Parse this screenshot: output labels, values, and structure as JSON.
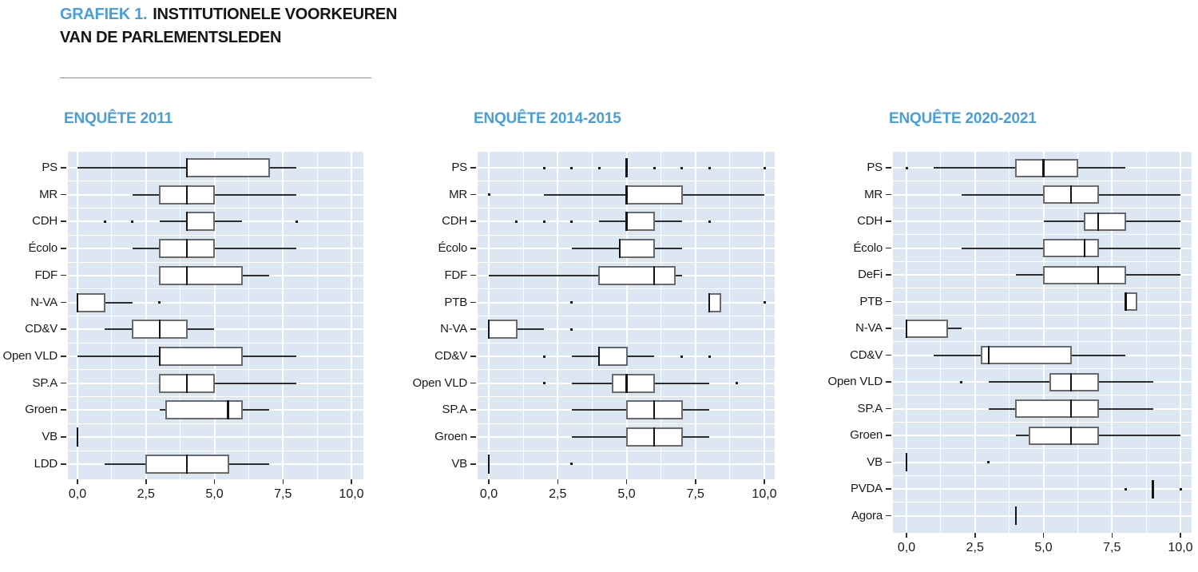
{
  "header": {
    "kicker": "GRAFIEK 1.",
    "title_line1": "INSTITUTIONELE VOORKEUREN",
    "title_line2": "VAN DE PARLEMENTSLEDEN"
  },
  "colors": {
    "accent_blue": "#4A9FD8",
    "panel_bg": "#DCE7F3",
    "grid_line": "#FFFFFF",
    "box_border": "#6A6A6A",
    "whisker": "#2E2E2E",
    "median": "#141414",
    "text": "#1A1A1A",
    "rule": "#8C8C8C"
  },
  "axis": {
    "x_tick_labels": [
      "0,0",
      "2,5",
      "5,0",
      "7,5",
      "10,0"
    ],
    "x_tick_values": [
      0,
      2.5,
      5,
      7.5,
      10
    ],
    "x_minor_step": 1.25,
    "xlim": [
      0,
      10
    ],
    "grid": "white-on-blue"
  },
  "chart_data": [
    {
      "type": "boxplot",
      "orientation": "horizontal",
      "title": "ENQUÊTE 2011",
      "xlim": [
        0,
        10
      ],
      "rows": [
        {
          "label": "PS",
          "min": 0,
          "q1": 4,
          "median": 4,
          "q3": 7,
          "max": 8,
          "outliers": []
        },
        {
          "label": "MR",
          "min": 2,
          "q1": 3,
          "median": 4,
          "q3": 5,
          "max": 8,
          "outliers": []
        },
        {
          "label": "CDH",
          "min": 3,
          "q1": 4,
          "median": 4,
          "q3": 5,
          "max": 6,
          "outliers": [
            1,
            2,
            8
          ]
        },
        {
          "label": "Écolo",
          "min": 2,
          "q1": 3,
          "median": 4,
          "q3": 5,
          "max": 8,
          "outliers": []
        },
        {
          "label": "FDF",
          "min": 3,
          "q1": 3,
          "median": 4,
          "q3": 6,
          "max": 7,
          "outliers": []
        },
        {
          "label": "N-VA",
          "min": 0,
          "q1": 0,
          "median": 0,
          "q3": 1,
          "max": 2,
          "outliers": [
            3
          ]
        },
        {
          "label": "CD&V",
          "min": 1,
          "q1": 2,
          "median": 3,
          "q3": 4,
          "max": 5,
          "outliers": []
        },
        {
          "label": "Open VLD",
          "min": 0,
          "q1": 3,
          "median": 3,
          "q3": 6,
          "max": 8,
          "outliers": []
        },
        {
          "label": "SP.A",
          "min": 3,
          "q1": 3,
          "median": 4,
          "q3": 5,
          "max": 8,
          "outliers": []
        },
        {
          "label": "Groen",
          "min": 3,
          "q1": 3.25,
          "median": 5.5,
          "q3": 6,
          "max": 7,
          "outliers": []
        },
        {
          "label": "VB",
          "min": 0,
          "q1": 0,
          "median": 0,
          "q3": 0,
          "max": 0,
          "outliers": []
        },
        {
          "label": "LDD",
          "min": 1,
          "q1": 2.5,
          "median": 4,
          "q3": 5.5,
          "max": 7,
          "outliers": []
        }
      ]
    },
    {
      "type": "boxplot",
      "orientation": "horizontal",
      "title": "ENQUÊTE 2014-2015",
      "xlim": [
        0,
        10
      ],
      "rows": [
        {
          "label": "PS",
          "min": 5,
          "q1": 5,
          "median": 5,
          "q3": 5,
          "max": 5,
          "outliers": [
            2,
            3,
            4,
            6,
            7,
            8,
            10
          ]
        },
        {
          "label": "MR",
          "min": 2,
          "q1": 5,
          "median": 5,
          "q3": 7,
          "max": 10,
          "outliers": [
            0
          ]
        },
        {
          "label": "CDH",
          "min": 4,
          "q1": 5,
          "median": 5,
          "q3": 6,
          "max": 7,
          "outliers": [
            1,
            2,
            3,
            8
          ]
        },
        {
          "label": "Écolo",
          "min": 3,
          "q1": 4.75,
          "median": 4.75,
          "q3": 6,
          "max": 7,
          "outliers": []
        },
        {
          "label": "FDF",
          "min": 0,
          "q1": 4,
          "median": 6,
          "q3": 6.75,
          "max": 7,
          "outliers": []
        },
        {
          "label": "PTB",
          "min": 8,
          "q1": 8,
          "median": 8,
          "q3": 8.4,
          "max": 8.4,
          "outliers": [
            3,
            10
          ]
        },
        {
          "label": "N-VA",
          "min": 0,
          "q1": 0,
          "median": 0,
          "q3": 1,
          "max": 2,
          "outliers": [
            3
          ]
        },
        {
          "label": "CD&V",
          "min": 3,
          "q1": 4,
          "median": 4,
          "q3": 5,
          "max": 6,
          "outliers": [
            2,
            7,
            8
          ]
        },
        {
          "label": "Open VLD",
          "min": 3,
          "q1": 4.5,
          "median": 5,
          "q3": 6,
          "max": 8,
          "outliers": [
            2,
            9
          ]
        },
        {
          "label": "SP.A",
          "min": 3,
          "q1": 5,
          "median": 6,
          "q3": 7,
          "max": 8,
          "outliers": []
        },
        {
          "label": "Groen",
          "min": 3,
          "q1": 5,
          "median": 6,
          "q3": 7,
          "max": 8,
          "outliers": []
        },
        {
          "label": "VB",
          "min": 0,
          "q1": 0,
          "median": 0,
          "q3": 0,
          "max": 0,
          "outliers": [
            3
          ]
        }
      ]
    },
    {
      "type": "boxplot",
      "orientation": "horizontal",
      "title": "ENQUÊTE 2020-2021",
      "xlim": [
        0,
        10
      ],
      "rows": [
        {
          "label": "PS",
          "min": 1,
          "q1": 4,
          "median": 5,
          "q3": 6.25,
          "max": 8,
          "outliers": [
            0
          ]
        },
        {
          "label": "MR",
          "min": 2,
          "q1": 5,
          "median": 6,
          "q3": 7,
          "max": 10,
          "outliers": []
        },
        {
          "label": "CDH",
          "min": 5,
          "q1": 6.5,
          "median": 7,
          "q3": 8,
          "max": 10,
          "outliers": []
        },
        {
          "label": "Écolo",
          "min": 2,
          "q1": 5,
          "median": 6.5,
          "q3": 7,
          "max": 10,
          "outliers": []
        },
        {
          "label": "DeFi",
          "min": 4,
          "q1": 5,
          "median": 7,
          "q3": 8,
          "max": 10,
          "outliers": []
        },
        {
          "label": "PTB",
          "min": 8,
          "q1": 8,
          "median": 8,
          "q3": 8.4,
          "max": 8.4,
          "outliers": []
        },
        {
          "label": "N-VA",
          "min": 0,
          "q1": 0,
          "median": 0,
          "q3": 1.5,
          "max": 2,
          "outliers": []
        },
        {
          "label": "CD&V",
          "min": 1,
          "q1": 2.75,
          "median": 3,
          "q3": 6,
          "max": 8,
          "outliers": []
        },
        {
          "label": "Open VLD",
          "min": 3,
          "q1": 5.25,
          "median": 6,
          "q3": 7,
          "max": 9,
          "outliers": [
            2
          ]
        },
        {
          "label": "SP.A",
          "min": 3,
          "q1": 4,
          "median": 6,
          "q3": 7,
          "max": 9,
          "outliers": []
        },
        {
          "label": "Groen",
          "min": 4,
          "q1": 4.5,
          "median": 6,
          "q3": 7,
          "max": 10,
          "outliers": []
        },
        {
          "label": "VB",
          "min": 0,
          "q1": 0,
          "median": 0,
          "q3": 0,
          "max": 0,
          "outliers": [
            3
          ]
        },
        {
          "label": "PVDA",
          "min": 9,
          "q1": 9,
          "median": 9,
          "q3": 9,
          "max": 9,
          "outliers": [
            8,
            10
          ]
        },
        {
          "label": "Agora",
          "min": 4,
          "q1": 4,
          "median": 4,
          "q3": 4,
          "max": 4,
          "outliers": []
        }
      ]
    }
  ]
}
